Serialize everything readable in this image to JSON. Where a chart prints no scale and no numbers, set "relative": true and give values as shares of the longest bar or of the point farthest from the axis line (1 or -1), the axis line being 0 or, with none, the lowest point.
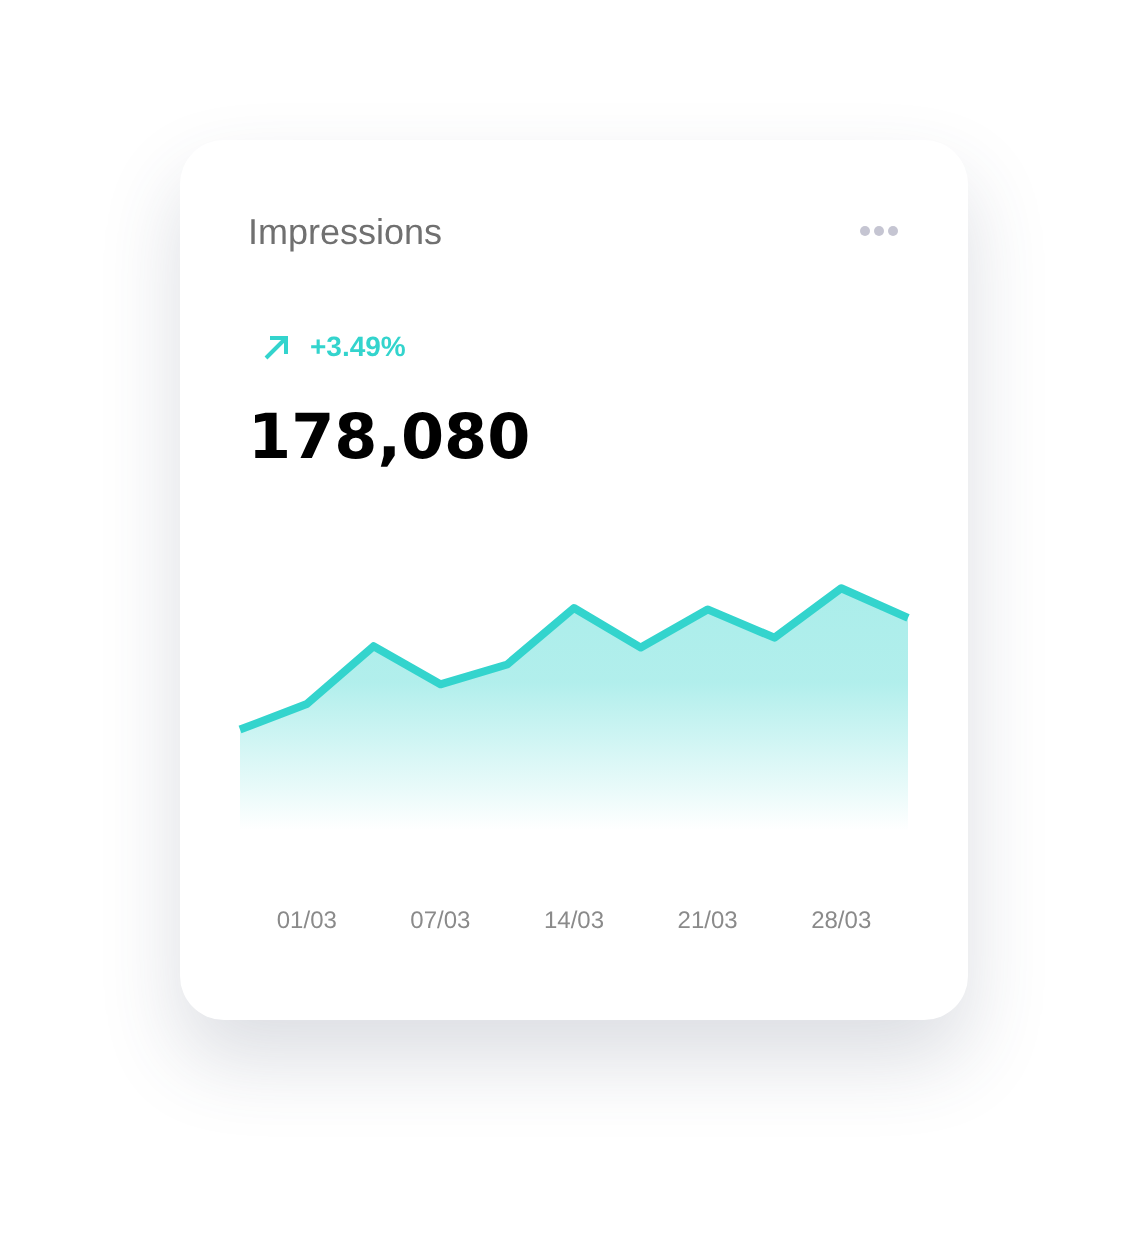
{
  "chart_data": {
    "type": "area",
    "title": "Impressions",
    "subtitle": "178,080",
    "annotations": [
      "+3.49%"
    ],
    "categories": [
      null,
      "01/03",
      null,
      "07/03",
      null,
      "14/03",
      null,
      "21/03",
      null,
      "28/03",
      null
    ],
    "series": [
      {
        "color": "#33d4cd",
        "values": [
          0,
          0.18,
          0.59,
          0.32,
          0.46,
          0.86,
          0.58,
          0.85,
          0.65,
          1,
          0.79
        ]
      }
    ],
    "relative": true,
    "grid": false,
    "legend": false,
    "marker": "none"
  }
}
